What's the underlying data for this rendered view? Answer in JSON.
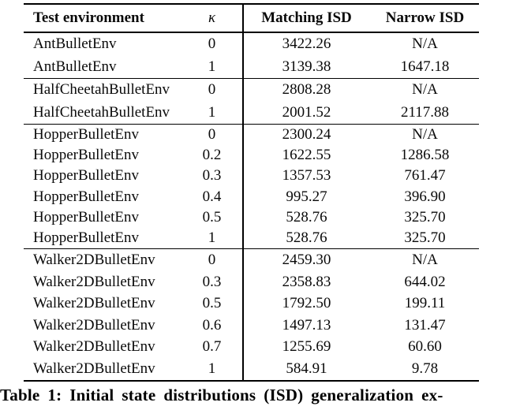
{
  "colors": {
    "background": "#ffffff",
    "text": "#0a0a0a",
    "rule": "#000000"
  },
  "table": {
    "headers": {
      "environment": "Test environment",
      "kappa": "κ",
      "matching": "Matching ISD",
      "narrow": "Narrow ISD"
    },
    "groups": [
      {
        "rows": [
          {
            "env": "AntBulletEnv",
            "kappa": "0",
            "matching": "3422.26",
            "narrow": "N/A"
          },
          {
            "env": "AntBulletEnv",
            "kappa": "1",
            "matching": "3139.38",
            "narrow": "1647.18"
          }
        ]
      },
      {
        "rows": [
          {
            "env": "HalfCheetahBulletEnv",
            "kappa": "0",
            "matching": "2808.28",
            "narrow": "N/A"
          },
          {
            "env": "HalfCheetahBulletEnv",
            "kappa": "1",
            "matching": "2001.52",
            "narrow": "2117.88"
          }
        ]
      },
      {
        "rows": [
          {
            "env": "HopperBulletEnv",
            "kappa": "0",
            "matching": "2300.24",
            "narrow": "N/A"
          },
          {
            "env": "HopperBulletEnv",
            "kappa": "0.2",
            "matching": "1622.55",
            "narrow": "1286.58"
          },
          {
            "env": "HopperBulletEnv",
            "kappa": "0.3",
            "matching": "1357.53",
            "narrow": "761.47"
          },
          {
            "env": "HopperBulletEnv",
            "kappa": "0.4",
            "matching": "995.27",
            "narrow": "396.90"
          },
          {
            "env": "HopperBulletEnv",
            "kappa": "0.5",
            "matching": "528.76",
            "narrow": "325.70"
          },
          {
            "env": "HopperBulletEnv",
            "kappa": "1",
            "matching": "528.76",
            "narrow": "325.70"
          }
        ]
      },
      {
        "rows": [
          {
            "env": "Walker2DBulletEnv",
            "kappa": "0",
            "matching": "2459.30",
            "narrow": "N/A"
          },
          {
            "env": "Walker2DBulletEnv",
            "kappa": "0.3",
            "matching": "2358.83",
            "narrow": "644.02"
          },
          {
            "env": "Walker2DBulletEnv",
            "kappa": "0.5",
            "matching": "1792.50",
            "narrow": "199.11"
          },
          {
            "env": "Walker2DBulletEnv",
            "kappa": "0.6",
            "matching": "1497.13",
            "narrow": "131.47"
          },
          {
            "env": "Walker2DBulletEnv",
            "kappa": "0.7",
            "matching": "1255.69",
            "narrow": "60.60"
          },
          {
            "env": "Walker2DBulletEnv",
            "kappa": "1",
            "matching": "584.91",
            "narrow": "9.78"
          }
        ]
      }
    ]
  },
  "caption": "Table 1: Initial state distributions (ISD) generalization ex-"
}
